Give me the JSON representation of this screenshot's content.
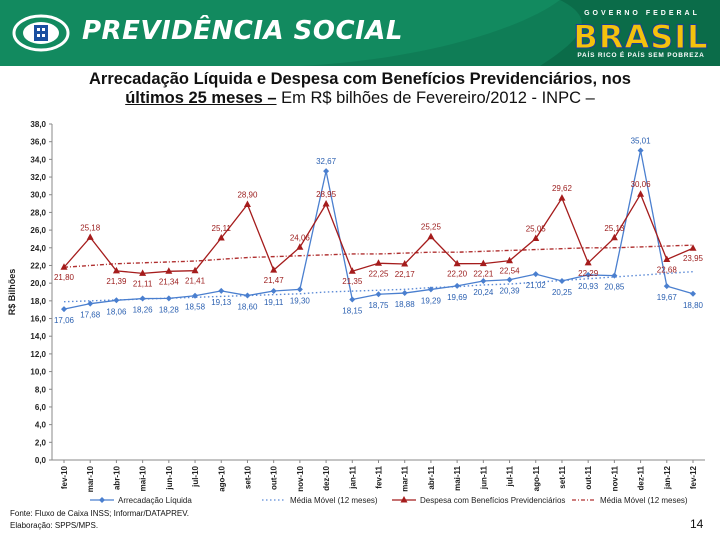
{
  "header": {
    "brand": "PREVIDÊNCIA SOCIAL",
    "gov_top": "GOVERNO FEDERAL",
    "gov_brasil": "BRASIL",
    "gov_slogan": "PAÍS RICO É PAÍS SEM POBREZA",
    "header_color": "#0f7d56"
  },
  "title": {
    "part1": "Arrecadação Líquida e Despesa com Benefícios Previdenciários, nos",
    "part2": "últimos 25 meses –",
    "part3": " Em R$ bilhões de Fevereiro/2012 - INPC –"
  },
  "footer": {
    "source_line1": "Fonte: Fluxo de Caixa INSS; Informar/DATAPREV.",
    "source_line2": "Elaboração: SPPS/MPS.",
    "page_number": "14"
  },
  "chart_data": {
    "type": "line",
    "ylabel": "R$ Bilhões",
    "xlabel": "",
    "ylim": [
      0,
      38
    ],
    "yticks": [
      "0,0",
      "2,0",
      "4,0",
      "6,0",
      "8,0",
      "10,0",
      "12,0",
      "14,0",
      "16,0",
      "18,0",
      "20,0",
      "22,0",
      "24,0",
      "26,0",
      "28,0",
      "30,0",
      "32,0",
      "34,0",
      "36,0",
      "38,0"
    ],
    "categories": [
      "fev-10",
      "mar-10",
      "abr-10",
      "mai-10",
      "jun-10",
      "jul-10",
      "ago-10",
      "set-10",
      "out-10",
      "nov-10",
      "dez-10",
      "jan-11",
      "fev-11",
      "mar-11",
      "abr-11",
      "mai-11",
      "jun-11",
      "jul-11",
      "ago-11",
      "set-11",
      "out-11",
      "nov-11",
      "dez-11",
      "jan-12",
      "fev-12"
    ],
    "grid": false,
    "legend_position": "bottom",
    "series": [
      {
        "name": "Arrecadação Líquida",
        "color": "#4a7fcf",
        "marker": "diamond",
        "dash": "solid",
        "values": [
          17.06,
          17.68,
          18.06,
          18.26,
          18.28,
          18.58,
          19.13,
          18.6,
          19.11,
          19.3,
          32.67,
          18.15,
          18.75,
          18.88,
          19.29,
          19.69,
          20.24,
          20.39,
          21.02,
          20.25,
          20.93,
          20.85,
          35.01,
          19.67,
          18.8
        ],
        "labels": [
          "17,06",
          "17,68",
          "18,06",
          "18,26",
          "18,28",
          "18,58",
          "19,13",
          "18,60",
          "19,11",
          "19,30",
          "32,67",
          "18,15",
          "18,75",
          "18,88",
          "19,29",
          "19,69",
          "20,24",
          "20,39",
          "21,02",
          "20,25",
          "20,93",
          "20,85",
          "35,01",
          "19,67",
          "18,80"
        ]
      },
      {
        "name": "Despesa com Benefícios Previdenciários",
        "color": "#a51c1c",
        "marker": "triangle",
        "dash": "solid",
        "values": [
          21.8,
          25.18,
          21.39,
          21.11,
          21.34,
          21.41,
          25.11,
          28.9,
          21.47,
          24.06,
          28.95,
          21.35,
          22.25,
          22.17,
          25.25,
          22.2,
          22.21,
          22.54,
          25.05,
          29.62,
          22.29,
          25.13,
          30.06,
          22.68,
          23.95
        ],
        "labels": [
          "21,80",
          "25,18",
          "21,39",
          "21,11",
          "21,34",
          "21,41",
          "25,11",
          "28,90",
          "21,47",
          "24,06",
          "28,95",
          "21,35",
          "22,25",
          "22,17",
          "25,25",
          "22,20",
          "22,21",
          "22,54",
          "25,05",
          "29,62",
          "22,29",
          "25,13",
          "30,06",
          "22,68",
          "23,95"
        ]
      },
      {
        "name": "Média Móvel (12 meses)",
        "color": "#5b8ad6",
        "marker": "none",
        "dash": "dotted",
        "values": [
          17.9,
          18.0,
          18.1,
          18.2,
          18.3,
          18.4,
          18.5,
          18.6,
          18.7,
          18.8,
          19.0,
          19.1,
          19.2,
          19.3,
          19.5,
          19.6,
          19.8,
          19.9,
          20.1,
          20.3,
          20.5,
          20.7,
          20.9,
          21.1,
          21.3
        ],
        "labels": []
      },
      {
        "name": "Média Móvel (12 meses)",
        "color": "#b03030",
        "marker": "none",
        "dash": "dashed",
        "values": [
          21.8,
          22.0,
          22.2,
          22.3,
          22.4,
          22.5,
          22.7,
          22.9,
          23.0,
          23.1,
          23.2,
          23.3,
          23.3,
          23.4,
          23.5,
          23.5,
          23.6,
          23.7,
          23.8,
          23.9,
          24.0,
          24.0,
          24.1,
          24.2,
          24.3
        ],
        "labels": []
      }
    ]
  }
}
